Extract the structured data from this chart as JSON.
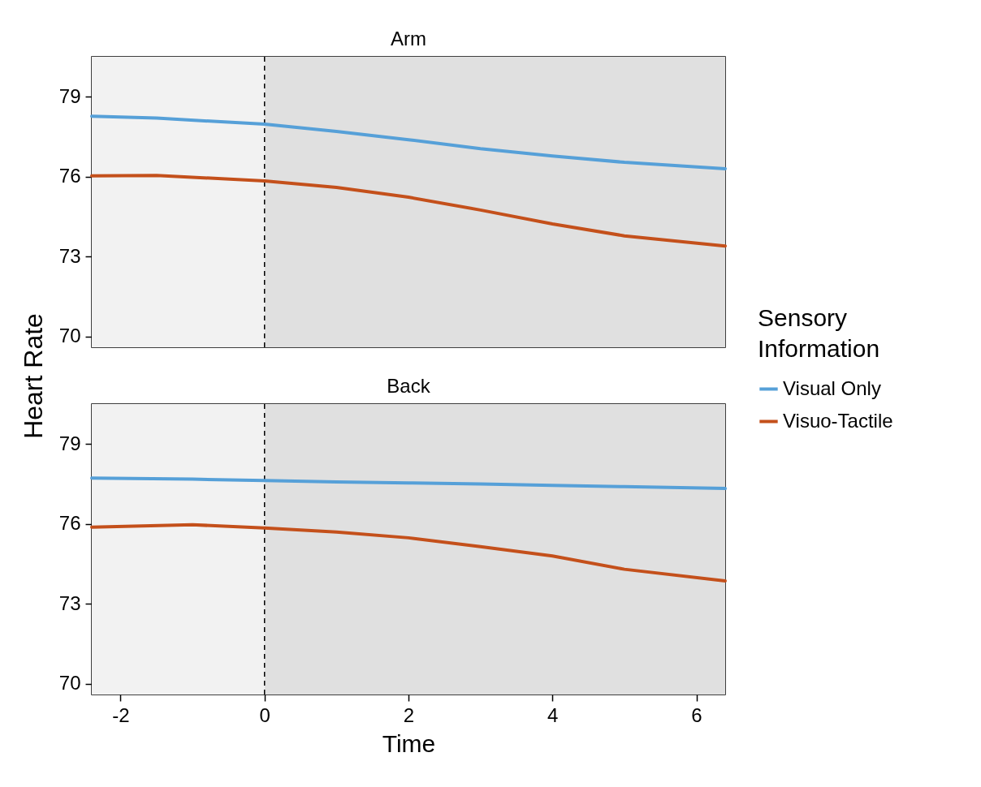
{
  "chart_data": [
    {
      "type": "line",
      "title": "Arm",
      "ylabel": "Heart Rate",
      "legend_title": "Sensory Information",
      "legend": "right",
      "tick_labels": "y",
      "x": [
        -2.4,
        -1.5,
        0,
        1,
        2,
        3,
        4,
        5,
        6.4
      ],
      "xlim": [
        -2.4,
        6.4
      ],
      "xticks": [
        -2,
        0,
        2,
        4,
        6
      ],
      "ylim": [
        69.6,
        80.5
      ],
      "yticks": [
        70,
        73,
        76,
        79
      ],
      "series": [
        {
          "name": "Visual Only",
          "color": "#56a0d8",
          "values": [
            78.27,
            78.2,
            77.97,
            77.7,
            77.39,
            77.05,
            76.78,
            76.54,
            76.3
          ]
        },
        {
          "name": "Visuo-Tactile",
          "color": "#c4501b",
          "values": [
            76.03,
            76.05,
            75.84,
            75.6,
            75.23,
            74.75,
            74.23,
            73.78,
            73.4
          ]
        }
      ],
      "bands": [
        {
          "axis": "x",
          "from": -2.4,
          "to": 0,
          "color": "#f2f2f2"
        },
        {
          "axis": "x",
          "from": 0,
          "to": 6.4,
          "color": "#e0e0e0"
        }
      ],
      "ref_lines": [
        {
          "axis": "x",
          "value": 0,
          "color": "#000000",
          "line_style": "dashed"
        }
      ]
    },
    {
      "type": "line",
      "title": "Back",
      "xlabel": "Time",
      "x": [
        -2.4,
        -1,
        0,
        1,
        2,
        3,
        4,
        5,
        6.4
      ],
      "xlim": [
        -2.4,
        6.4
      ],
      "xticks": [
        -2,
        0,
        2,
        4,
        6
      ],
      "ylim": [
        69.6,
        80.5
      ],
      "yticks": [
        70,
        73,
        76,
        79
      ],
      "series": [
        {
          "name": "Visual Only",
          "color": "#56a0d8",
          "values": [
            77.72,
            77.68,
            77.63,
            77.58,
            77.54,
            77.5,
            77.45,
            77.4,
            77.33
          ]
        },
        {
          "name": "Visuo-Tactile",
          "color": "#c4501b",
          "values": [
            75.88,
            75.97,
            75.85,
            75.7,
            75.48,
            75.15,
            74.8,
            74.3,
            73.86
          ]
        }
      ],
      "bands": [
        {
          "axis": "x",
          "from": -2.4,
          "to": 0,
          "color": "#f2f2f2"
        },
        {
          "axis": "x",
          "from": 0,
          "to": 6.4,
          "color": "#e0e0e0"
        }
      ],
      "ref_lines": [
        {
          "axis": "x",
          "value": 0,
          "color": "#000000",
          "line_style": "dashed"
        }
      ]
    }
  ]
}
